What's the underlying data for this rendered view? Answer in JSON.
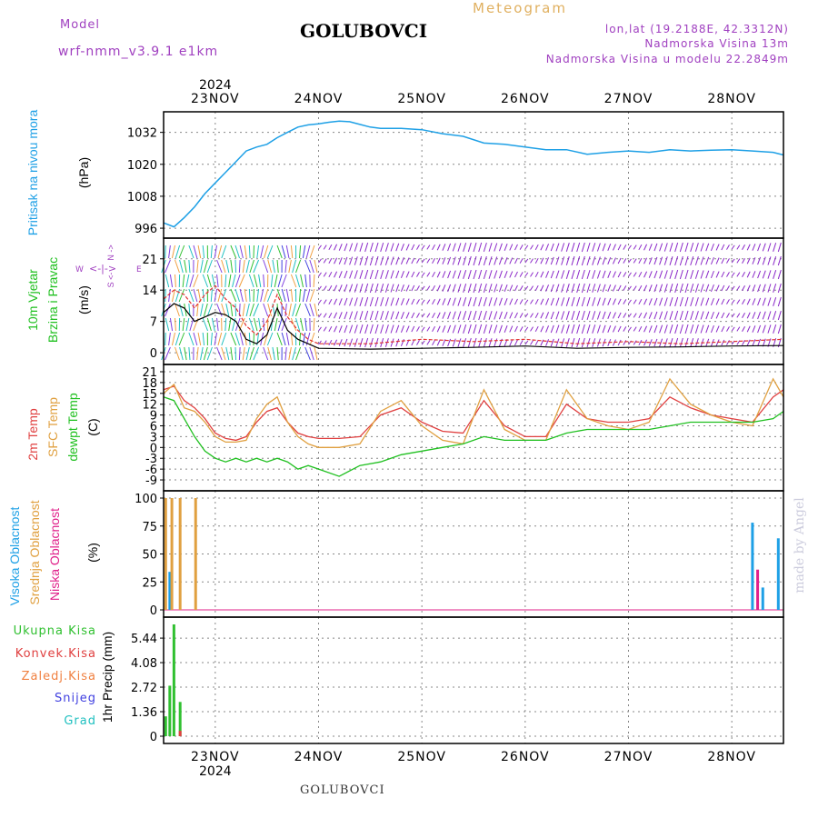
{
  "header": {
    "model_label": "Model",
    "model_name": "wrf-nmm_v3.9.1 e1km",
    "station": "GOLUBOVCI",
    "meteogram": "Meteogram",
    "lonlat": "lon,lat (19.2188E, 42.3312N)",
    "altitude": "Nadmorska Visina 13m",
    "altitude_model": "Nadmorska Visina u modelu 22.2849m"
  },
  "footer": {
    "station": "GOLUBOVCI",
    "made_by": "made by Angel"
  },
  "time_axis": {
    "year": "2024",
    "labels": [
      "23NOV",
      "24NOV",
      "25NOV",
      "26NOV",
      "27NOV",
      "28NOV"
    ],
    "start": 22.5,
    "end": 28.5
  },
  "colors": {
    "pressure": "#1ea0e6",
    "wind_speed": "#000000",
    "wind_gust": "#e03030",
    "t2m": "#e04040",
    "sfc": "#e0a040",
    "dewpt": "#20c020",
    "cloud_high": "#1ea0e6",
    "cloud_mid": "#e0a040",
    "cloud_low": "#e0208a",
    "precip_total": "#30c030",
    "precip_conv": "#e04040"
  },
  "chart_data": [
    {
      "type": "line",
      "ylabel": "Pritisak na nivou mora",
      "unit": "(hPa)",
      "ylim": [
        995,
        1037
      ],
      "yticks": [
        996,
        1008,
        1020,
        1032
      ],
      "series": [
        {
          "x": [
            22.5,
            22.6,
            22.7,
            22.8,
            22.9,
            23.0,
            23.1,
            23.2,
            23.3,
            23.4,
            23.5,
            23.6,
            23.7,
            23.8,
            23.9,
            24.0,
            24.1,
            24.2,
            24.3,
            24.4,
            24.5,
            24.6,
            24.8,
            25.0,
            25.2,
            25.4,
            25.6,
            25.8,
            26.0,
            26.2,
            26.4,
            26.6,
            26.8,
            27.0,
            27.2,
            27.4,
            27.6,
            27.8,
            28.0,
            28.2,
            28.4,
            28.5
          ],
          "y": [
            998,
            996.5,
            1000,
            1004,
            1009,
            1013,
            1017,
            1021,
            1025,
            1026.5,
            1027.5,
            1030,
            1032,
            1034,
            1034.8,
            1035.2,
            1035.8,
            1036.2,
            1036,
            1035,
            1034,
            1033.5,
            1033.5,
            1033,
            1031.5,
            1030.5,
            1028,
            1027.5,
            1026.5,
            1025.5,
            1025.5,
            1023.8,
            1024.5,
            1025,
            1024.5,
            1025.5,
            1025,
            1025.3,
            1025.5,
            1025,
            1024.5,
            1023.5
          ]
        }
      ]
    },
    {
      "type": "line",
      "ylabel": "10m Vjetar Brzina i Pravac",
      "unit": "(m/s)",
      "direction_key": "N ->, S <-, W, E",
      "ylim": [
        -1,
        24
      ],
      "yticks": [
        0,
        7,
        14,
        21
      ],
      "series": [
        {
          "name": "speed",
          "x": [
            22.5,
            22.6,
            22.7,
            22.8,
            22.9,
            23.0,
            23.1,
            23.2,
            23.3,
            23.4,
            23.5,
            23.6,
            23.7,
            23.8,
            23.9,
            24.0,
            24.5,
            25.0,
            25.5,
            26.0,
            26.5,
            27.0,
            27.5,
            28.0,
            28.5
          ],
          "y": [
            9,
            11,
            10,
            7,
            8,
            9,
            8.5,
            7,
            3,
            2,
            4,
            10,
            5,
            3,
            2,
            1,
            0.8,
            1,
            1.2,
            1.5,
            1,
            1.2,
            1.3,
            1.5,
            1.6
          ]
        },
        {
          "name": "gust",
          "x": [
            22.5,
            22.6,
            22.7,
            22.8,
            22.9,
            23.0,
            23.1,
            23.2,
            23.3,
            23.4,
            23.5,
            23.6,
            23.7,
            23.8,
            23.9,
            24.0,
            24.5,
            25.0,
            25.5,
            26.0,
            26.5,
            27.0,
            27.5,
            28.0,
            28.5
          ],
          "y": [
            12,
            14,
            13,
            10,
            13,
            15,
            12,
            10,
            6,
            4,
            7,
            13,
            8,
            5,
            3,
            2,
            2,
            3,
            2.5,
            3,
            2,
            2.5,
            2,
            2.5,
            3
          ]
        }
      ]
    },
    {
      "type": "line",
      "ylabel": "2m Temp / SFC Temp / dewpt Temp",
      "unit": "(C)",
      "ylim": [
        -10,
        21
      ],
      "yticks": [
        -9,
        -6,
        -3,
        0,
        3,
        6,
        9,
        12,
        15,
        18,
        21
      ],
      "series": [
        {
          "name": "2m Temp",
          "x": [
            22.5,
            22.6,
            22.7,
            22.8,
            22.9,
            23.0,
            23.1,
            23.2,
            23.3,
            23.4,
            23.5,
            23.6,
            23.7,
            23.8,
            23.9,
            24.0,
            24.2,
            24.4,
            24.6,
            24.8,
            25.0,
            25.2,
            25.4,
            25.6,
            25.8,
            26.0,
            26.2,
            26.4,
            26.6,
            26.8,
            27.0,
            27.2,
            27.4,
            27.6,
            27.8,
            28.0,
            28.2,
            28.4,
            28.5
          ],
          "y": [
            16,
            17,
            13,
            11,
            8,
            4,
            2.5,
            2,
            3,
            7,
            10,
            11,
            7,
            4,
            3,
            2.5,
            2.5,
            3,
            9,
            11,
            7,
            4.5,
            4,
            13,
            6,
            3,
            3,
            12,
            8,
            7,
            7,
            8,
            14,
            11,
            9,
            8,
            7,
            14,
            16
          ]
        },
        {
          "name": "SFC Temp",
          "x": [
            22.5,
            22.6,
            22.7,
            22.8,
            22.9,
            23.0,
            23.1,
            23.2,
            23.3,
            23.4,
            23.5,
            23.6,
            23.7,
            23.8,
            23.9,
            24.0,
            24.2,
            24.4,
            24.6,
            24.8,
            25.0,
            25.2,
            25.4,
            25.6,
            25.8,
            26.0,
            26.2,
            26.4,
            26.6,
            26.8,
            27.0,
            27.2,
            27.4,
            27.6,
            27.8,
            28.0,
            28.2,
            28.4,
            28.5
          ],
          "y": [
            15,
            17.5,
            11,
            10,
            7,
            3,
            1.5,
            1.5,
            2,
            8,
            12,
            14,
            7,
            3,
            1,
            0,
            0,
            1,
            10,
            13,
            6,
            2,
            1,
            16,
            5,
            2,
            2,
            16,
            8,
            6,
            5,
            7,
            19,
            12,
            9,
            7,
            6,
            19,
            14
          ]
        },
        {
          "name": "dewpt Temp",
          "x": [
            22.5,
            22.6,
            22.7,
            22.8,
            22.9,
            23.0,
            23.1,
            23.2,
            23.3,
            23.4,
            23.5,
            23.6,
            23.7,
            23.8,
            23.9,
            24.0,
            24.2,
            24.4,
            24.6,
            24.8,
            25.0,
            25.2,
            25.4,
            25.6,
            25.8,
            26.0,
            26.2,
            26.4,
            26.6,
            26.8,
            27.0,
            27.2,
            27.4,
            27.6,
            27.8,
            28.0,
            28.2,
            28.4,
            28.5
          ],
          "y": [
            14,
            13,
            8,
            3,
            -1,
            -3,
            -4,
            -3,
            -4,
            -3,
            -4,
            -3,
            -4,
            -6,
            -5,
            -6,
            -8,
            -5,
            -4,
            -2,
            -1,
            0,
            1,
            3,
            2,
            2,
            2,
            4,
            5,
            5,
            5,
            5,
            6,
            7,
            7,
            7,
            7,
            8,
            10
          ]
        }
      ]
    },
    {
      "type": "bar",
      "ylabel": "Visoka Oblacnost / Srednja Oblacnost / Niska Oblacnost",
      "unit": "(%)",
      "ylim": [
        0,
        100
      ],
      "yticks": [
        0,
        25,
        50,
        75,
        100
      ],
      "series": [
        {
          "name": "Visoka Oblacnost",
          "x": [
            22.56,
            28.2,
            28.3,
            28.45
          ],
          "y": [
            34,
            78,
            20,
            64
          ]
        },
        {
          "name": "Srednja Oblacnost",
          "x": [
            22.52,
            22.58,
            22.66,
            22.81
          ],
          "y": [
            100,
            100,
            100,
            100
          ]
        },
        {
          "name": "Niska Oblacnost",
          "x": [
            28.25
          ],
          "y": [
            36
          ]
        }
      ]
    },
    {
      "type": "bar",
      "ylabel": "1hr Precip",
      "unit": "(mm)",
      "legend": [
        "Ukupna Kisa",
        "Konvek.Kisa",
        "Zaledj.Kisa",
        "Snijeg",
        "Grad"
      ],
      "ylim": [
        0,
        6.2
      ],
      "yticks": [
        0,
        1.36,
        2.72,
        4.08,
        5.44
      ],
      "series": [
        {
          "name": "Ukupna Kisa",
          "x": [
            22.52,
            22.56,
            22.6,
            22.66
          ],
          "y": [
            1.1,
            2.8,
            6.2,
            1.9
          ]
        },
        {
          "name": "Konvek.Kisa",
          "x": [
            22.66
          ],
          "y": [
            0.3
          ]
        }
      ]
    }
  ]
}
